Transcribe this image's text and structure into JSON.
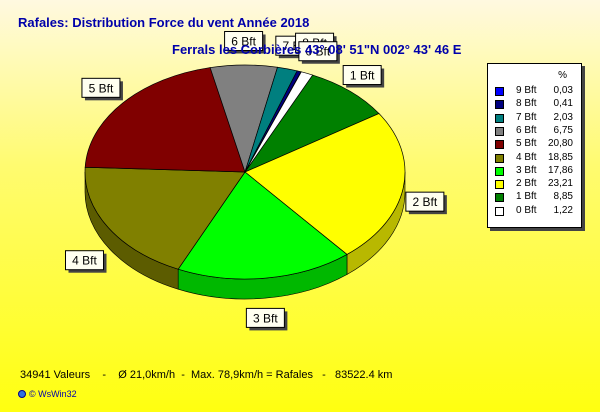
{
  "chart_data": {
    "type": "pie",
    "title": "Rafales: Distribution Force du vent  Année 2018",
    "subtitle": "Ferrals les Corbières 43° 08' 51\"N  002° 43' 46 E",
    "legend_unit": "%",
    "legend_position": "right",
    "slices": [
      {
        "label": "9 Bft",
        "value": 0.03,
        "value_text": "0,03",
        "color": "#0000ff"
      },
      {
        "label": "8 Bft",
        "value": 0.41,
        "value_text": "0,41",
        "color": "#00007f"
      },
      {
        "label": "7 Bft",
        "value": 2.03,
        "value_text": "2,03",
        "color": "#007f7f"
      },
      {
        "label": "6 Bft",
        "value": 6.75,
        "value_text": "6,75",
        "color": "#808080"
      },
      {
        "label": "5 Bft",
        "value": 20.8,
        "value_text": "20,80",
        "color": "#800000"
      },
      {
        "label": "4 Bft",
        "value": 18.85,
        "value_text": "18,85",
        "color": "#808000"
      },
      {
        "label": "3 Bft",
        "value": 17.86,
        "value_text": "17,86",
        "color": "#00ff00"
      },
      {
        "label": "2 Bft",
        "value": 23.21,
        "value_text": "23,21",
        "color": "#ffff00"
      },
      {
        "label": "1 Bft",
        "value": 8.85,
        "value_text": "8,85",
        "color": "#008000"
      },
      {
        "label": "0 Bft",
        "value": 1.22,
        "value_text": "1,22",
        "color": "#ffffff"
      }
    ]
  },
  "footer": {
    "text": "34941 Valeurs    -    Ø 21,0km/h  -  Max. 78,9km/h = Rafales   -   83522.4 km",
    "brand": "© WsWin32"
  }
}
